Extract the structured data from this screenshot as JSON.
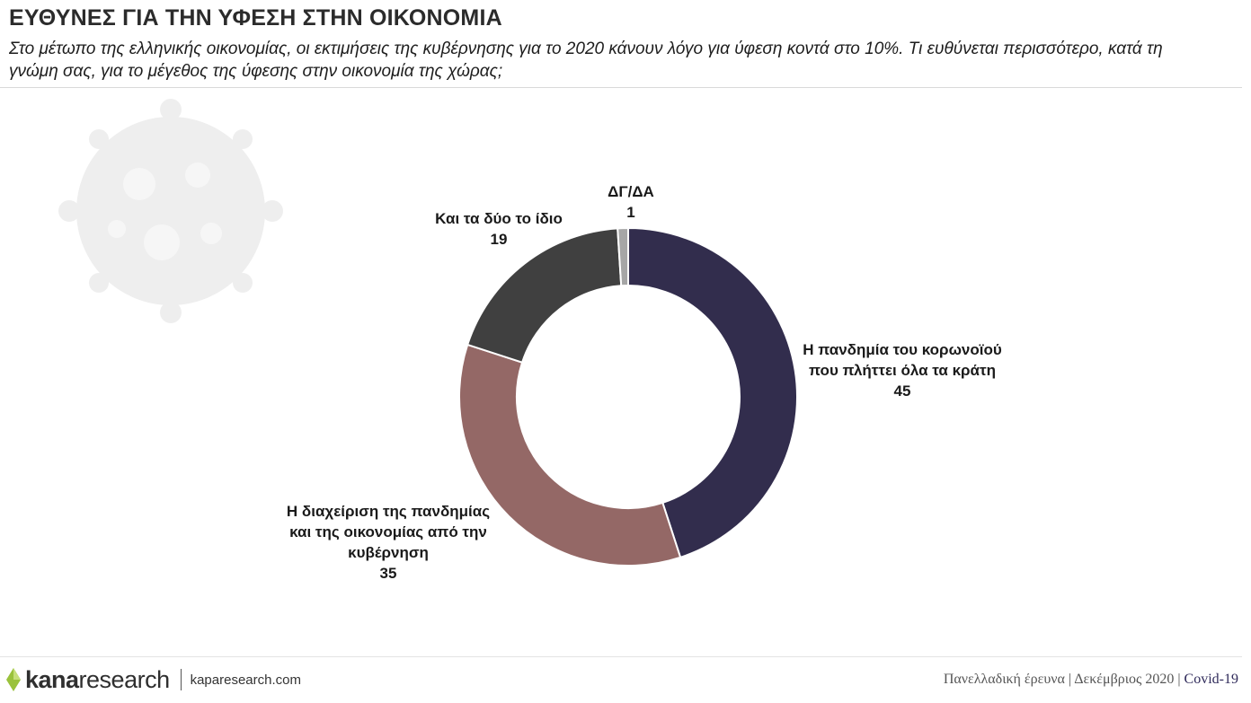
{
  "header": {
    "title": "ΕΥΘΥΝΕΣ ΓΙΑ ΤΗΝ ΥΦΕΣΗ ΣΤΗΝ ΟΙΚΟΝΟΜΙΑ",
    "subtitle": "Στο μέτωπο της ελληνικής οικονομίας, οι εκτιμήσεις της κυβέρνησης για το 2020 κάνουν λόγο για ύφεση κοντά στο 10%. Τι ευθύνεται περισσότερο, κατά τη γνώμη σας, για το μέγεθος της ύφεσης στην οικονομία της χώρας;"
  },
  "chart_data": {
    "type": "pie",
    "donut": true,
    "categories": [
      "Η πανδημία του κορωνοϊού που πλήττει όλα τα κράτη",
      "Η διαχείριση της πανδημίας και της οικονομίας από την κυβέρνηση",
      "Και τα δύο το ίδιο",
      "ΔΓ/ΔΑ"
    ],
    "values": [
      45,
      35,
      19,
      1
    ],
    "label_lines": [
      [
        "Η πανδημία του κορωνοϊού",
        "που πλήττει όλα τα κράτη"
      ],
      [
        "Η διαχείριση της πανδημίας",
        "και της οικονομίας από την",
        "κυβέρνηση"
      ],
      [
        "Και τα δύο το ίδιο"
      ],
      [
        "ΔΓ/ΔΑ"
      ]
    ],
    "colors": [
      "#322d4d",
      "#946866",
      "#404040",
      "#a6a6a6"
    ],
    "legend": "none"
  },
  "footer": {
    "logo_kana": "kana",
    "logo_research": "research",
    "separator": "|",
    "site": "kaparesearch.com",
    "survey": "Πανελλαδική έρευνα | Δεκέμβριος 2020 | ",
    "tag": "Covid-19"
  }
}
